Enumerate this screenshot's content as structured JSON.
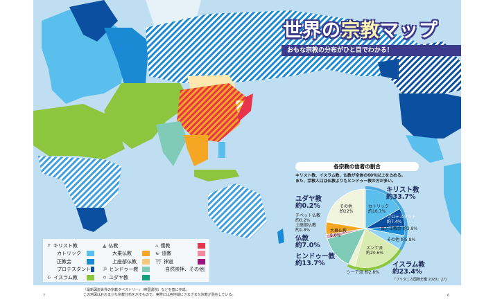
{
  "header": {
    "title_part1": "世界の",
    "title_part2": "宗教",
    "title_part3": "マップ",
    "subtitle": "おもな宗教の分布がひと目でわかる！"
  },
  "legend": {
    "christianity": "キリスト教",
    "catholic": "カトリック",
    "orthodox": "正教会",
    "protestant": "プロテスタント",
    "islam": "イスラム教",
    "buddhism": "仏教",
    "mahayana": "大乗仏教",
    "theravada": "上座部仏教",
    "hinduism": "ヒンドゥー教",
    "judaism": "ユダヤ教",
    "confucianism": "儒教",
    "taoism": "道教",
    "shinto": "神道",
    "folk_other": "自然崇拝、その他"
  },
  "colors": {
    "sea": "#bfdef2",
    "catholic": "#5bbfee",
    "orthodox": "#1a8ad4",
    "protestant": "#0a4fa0",
    "islam": "#8cc63f",
    "mahayana": "#f5a623",
    "theravada": "#f8c77e",
    "hinduism": "#7fcbb8",
    "judaism": "#13a07a",
    "confucianism": "#e8344a",
    "taoism": "#f08a9c",
    "shinto": "#a0127f",
    "folk_other": "#eef3d8",
    "accent": "#3b3a8c"
  },
  "chart_data": {
    "type": "pie",
    "title": "各宗教の信者の割合",
    "description": [
      "キリスト教、イスラム教、仏教が全体の60％以上を占める。",
      "また、宗教人口は仏教よりもヒンドゥー教の方が多い。"
    ],
    "slices": [
      {
        "label": "カトリック",
        "value": 16.7,
        "group": "キリスト教",
        "color": "#5bbfee"
      },
      {
        "label": "プロテスタント",
        "value": 7.4,
        "group": "キリスト教",
        "color": "#0a4fa0"
      },
      {
        "label": "東方正教会",
        "value": 3.8,
        "group": "キリスト教",
        "color": "#1a8ad4"
      },
      {
        "label": "その他",
        "value": 5.8,
        "group": "キリスト教",
        "color": "#8fd3f4"
      },
      {
        "label": "スンナ派",
        "value": 20.6,
        "group": "イスラム教",
        "color": "#d8ebb0"
      },
      {
        "label": "シーア派",
        "value": 2.8,
        "group": "イスラム教",
        "color": "#eaf4d2"
      },
      {
        "label": "ヒンドゥー教",
        "value": 13.7,
        "group": "ヒンドゥー教",
        "color": "#7fcbb8"
      },
      {
        "label": "上座部仏教",
        "value": 1.8,
        "group": "仏教",
        "color": "#d9a3ad"
      },
      {
        "label": "大乗仏教",
        "value": 5.0,
        "group": "仏教",
        "color": "#f5a623"
      },
      {
        "label": "チベット仏教",
        "value": 0.2,
        "group": "仏教",
        "color": "#c88"
      },
      {
        "label": "ユダヤ教",
        "value": 0.2,
        "group": "ユダヤ教",
        "color": "#13a07a"
      },
      {
        "label": "その他",
        "value": 22,
        "group": "その他",
        "color": "#f1f5dd"
      }
    ],
    "groups": [
      {
        "name": "キリスト教",
        "value": "約33.7%",
        "color": "#4aa9e0"
      },
      {
        "name": "イスラム教",
        "value": "約23.4%",
        "color": "#8cc63f"
      },
      {
        "name": "ヒンドゥー教",
        "value": "約13.7%"
      },
      {
        "name": "仏教",
        "value": "約7.0%"
      },
      {
        "name": "ユダヤ教",
        "value": "約0.2%"
      }
    ],
    "labels": {
      "catholic": "カトリック",
      "catholic_v": "約16.7%",
      "protestant": "プロテスタント",
      "protestant_v": "約7.4%",
      "orthodox": "東方正教会 約3.8%",
      "xother": "その他 約5.8%",
      "sunni": "スンナ派",
      "sunni_v": "約20.6%",
      "shia": "シーア派 約2.8%",
      "mahayana": "大乗仏教",
      "mahayana_v": "5.0%",
      "theravada": "上座部仏教",
      "theravada_v": "約1.8%",
      "tibetan": "チベット仏教",
      "tibetan_v": "約0.2%",
      "other": "その他",
      "other_v": "約22%"
    },
    "source": "『ブリタニカ国際年鑑 2020』より"
  },
  "footer": {
    "note1": "『最新図説世界の宗教タペストリー』（帝国書院）などを基に作成。",
    "note2": "この地図はおおまかな宗教分布を示すもので、実際には各地域にさまざまな宗教が混在している。",
    "page_left": "7",
    "page_right": "6"
  }
}
